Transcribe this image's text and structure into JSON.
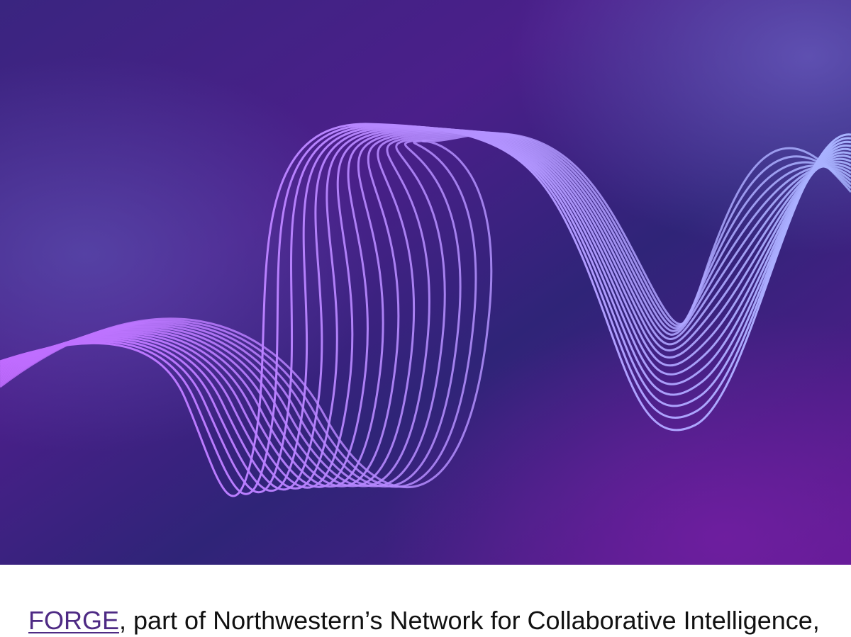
{
  "hero": {
    "image": "purple-wave-lines-illustration",
    "colors": {
      "bg_dark": "#2f1f73",
      "bg_mid": "#4a2b8f",
      "bg_violet": "#5a1f8e",
      "wave_violet": "#c77dff",
      "wave_lavender": "#a9a8ff"
    }
  },
  "caption": {
    "link_text": "FORGE",
    "text": ", part of Northwestern’s Network for Collaborative Intelligence,"
  }
}
